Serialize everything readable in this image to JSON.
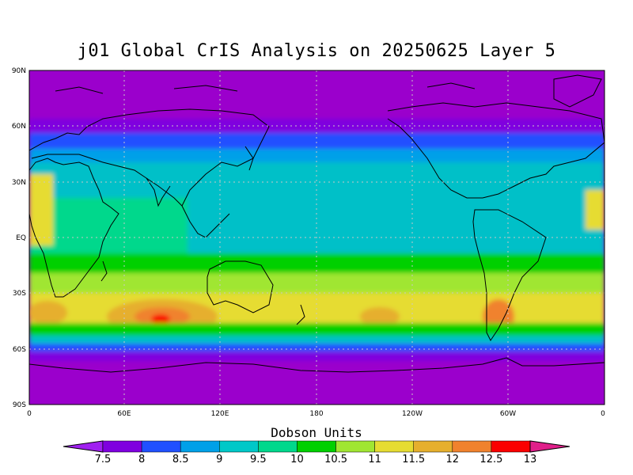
{
  "title": "j01 Global CrIS Analysis on 20250625 Layer 5",
  "lat_ticks": [
    "90N",
    "60N",
    "30N",
    "EQ",
    "30S",
    "60S",
    "90S"
  ],
  "lon_ticks": [
    "0",
    "60E",
    "120E",
    "180",
    "120W",
    "60W",
    "0"
  ],
  "colorbar": {
    "title": "Dobson Units",
    "labels": [
      "7.5",
      "8",
      "8.5",
      "9",
      "9.5",
      "10",
      "10.5",
      "11",
      "11.5",
      "12",
      "12.5",
      "13"
    ],
    "colors": [
      "#a020f0",
      "#7f00df",
      "#2050ff",
      "#00a0e8",
      "#00c8c8",
      "#00d88c",
      "#00d000",
      "#a0e632",
      "#e6dc32",
      "#e6af2d",
      "#f0822d",
      "#fa0000",
      "#e01f8a"
    ]
  },
  "colors": {
    "background_field": "#9900cc",
    "grid": "#c8c8c8"
  }
}
